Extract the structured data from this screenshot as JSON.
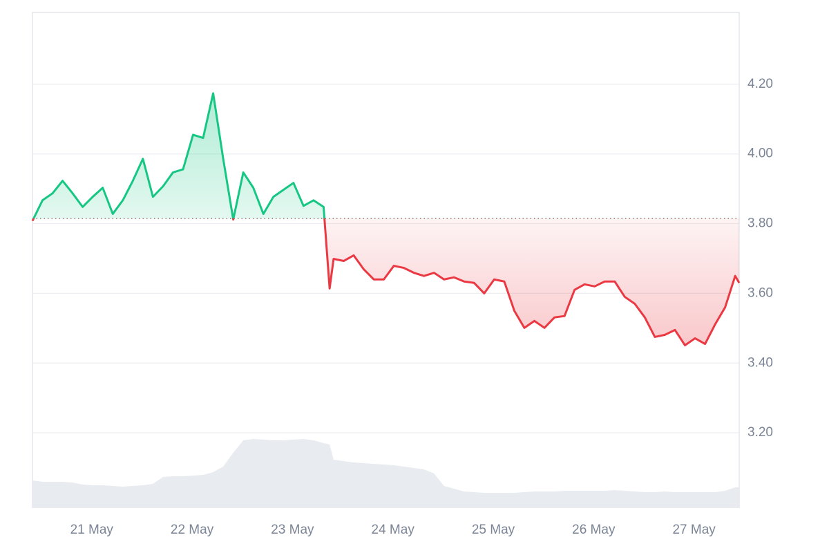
{
  "chart_data": {
    "type": "line",
    "x": [
      20.41,
      20.51,
      20.61,
      20.71,
      20.81,
      20.91,
      21.01,
      21.11,
      21.21,
      21.31,
      21.41,
      21.51,
      21.61,
      21.71,
      21.81,
      21.91,
      22.01,
      22.11,
      22.21,
      22.31,
      22.41,
      22.51,
      22.61,
      22.71,
      22.81,
      22.91,
      23.01,
      23.11,
      23.21,
      23.31,
      23.37,
      23.41,
      23.51,
      23.61,
      23.71,
      23.81,
      23.91,
      24.01,
      24.11,
      24.21,
      24.31,
      24.41,
      24.51,
      24.61,
      24.71,
      24.81,
      24.91,
      25.01,
      25.11,
      25.21,
      25.31,
      25.41,
      25.51,
      25.61,
      25.71,
      25.81,
      25.91,
      26.01,
      26.11,
      26.21,
      26.31,
      26.41,
      26.51,
      26.61,
      26.71,
      26.81,
      26.91,
      27.01,
      27.11,
      27.21,
      27.31,
      27.41,
      27.45
    ],
    "series": [
      {
        "color": "#16c784",
        "color_below": "#ea3943",
        "values": [
          3.808,
          3.867,
          3.887,
          3.923,
          3.887,
          3.848,
          3.877,
          3.903,
          3.828,
          3.867,
          3.923,
          3.986,
          3.877,
          3.907,
          3.947,
          3.956,
          4.055,
          4.046,
          4.174,
          3.986,
          3.812,
          3.947,
          3.903,
          3.828,
          3.877,
          3.897,
          3.917,
          3.851,
          3.867,
          3.848,
          3.614,
          3.699,
          3.693,
          3.709,
          3.669,
          3.64,
          3.64,
          3.679,
          3.673,
          3.659,
          3.65,
          3.659,
          3.64,
          3.646,
          3.634,
          3.63,
          3.6,
          3.64,
          3.634,
          3.55,
          3.501,
          3.521,
          3.501,
          3.531,
          3.535,
          3.61,
          3.626,
          3.62,
          3.634,
          3.634,
          3.59,
          3.57,
          3.531,
          3.475,
          3.481,
          3.495,
          3.451,
          3.471,
          3.455,
          3.511,
          3.56,
          3.65,
          3.63
        ]
      }
    ],
    "volume": [
      40,
      38,
      38,
      38,
      37,
      34,
      33,
      33,
      32,
      31,
      32,
      33,
      35,
      45,
      46,
      46,
      47,
      48,
      52,
      60,
      80,
      98,
      100,
      99,
      98,
      98,
      99,
      100,
      98,
      94,
      92,
      70,
      68,
      66,
      65,
      64,
      63,
      62,
      60,
      58,
      56,
      50,
      32,
      28,
      24,
      23,
      22,
      22,
      22,
      22,
      23,
      24,
      24,
      24,
      25,
      25,
      25,
      25,
      25,
      26,
      25,
      24,
      23,
      23,
      24,
      23,
      23,
      23,
      23,
      23,
      25,
      30,
      30
    ],
    "baseline": 3.815,
    "ylim": [
      2.984,
      4.406
    ],
    "yticks": [
      {
        "value": 3.2,
        "label": "3.20"
      },
      {
        "value": 3.4,
        "label": "3.40"
      },
      {
        "value": 3.6,
        "label": "3.60"
      },
      {
        "value": 3.8,
        "label": "3.80"
      },
      {
        "value": 4.0,
        "label": "4.00"
      },
      {
        "value": 4.2,
        "label": "4.20"
      }
    ],
    "xlim": [
      20.41,
      27.45
    ],
    "xticks": [
      {
        "value": 21,
        "label": "21 May"
      },
      {
        "value": 22,
        "label": "22 May"
      },
      {
        "value": 23,
        "label": "23 May"
      },
      {
        "value": 24,
        "label": "24 May"
      },
      {
        "value": 25,
        "label": "25 May"
      },
      {
        "value": 26,
        "label": "26 May"
      },
      {
        "value": 27,
        "label": "27 May"
      }
    ],
    "grid": true
  }
}
